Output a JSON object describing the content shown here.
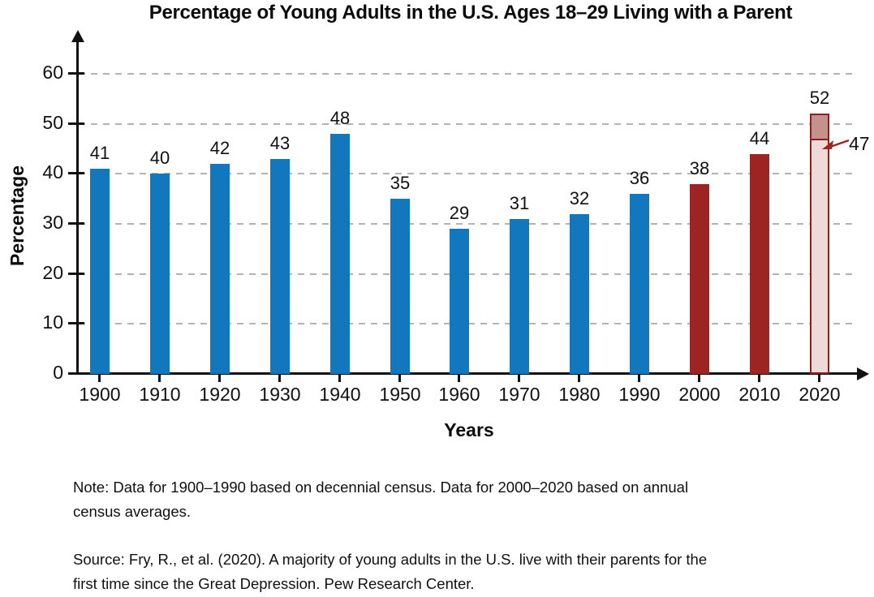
{
  "chart_data": {
    "type": "bar",
    "title": "Percentage of Young Adults in the U.S. Ages 18–29 Living with a Parent",
    "xlabel": "Years",
    "ylabel": "Percentage",
    "ylim": [
      0,
      60
    ],
    "yticks": [
      0,
      10,
      20,
      30,
      40,
      50,
      60
    ],
    "grid": "dashed horizontal gridlines at each y tick",
    "axis_style": "arrow-tipped x and y axes",
    "legend": null,
    "categories": [
      "1900",
      "1910",
      "1920",
      "1930",
      "1940",
      "1950",
      "1960",
      "1970",
      "1980",
      "1990",
      "2000",
      "2010",
      "2020"
    ],
    "values": [
      41,
      40,
      42,
      43,
      48,
      35,
      29,
      31,
      32,
      36,
      38,
      44,
      52
    ],
    "bar_groups": [
      "decennial",
      "decennial",
      "decennial",
      "decennial",
      "decennial",
      "decennial",
      "decennial",
      "decennial",
      "decennial",
      "decennial",
      "annual",
      "annual",
      "annual_highlight"
    ],
    "annotation": {
      "category": "2020",
      "bar_total": 52,
      "marker_value": 47
    },
    "colors": {
      "decennial": "#1377BD",
      "annual": "#9E2423",
      "highlight_fill": "#F0DAD7",
      "highlight_top_fill": "#C4928D",
      "highlight_border": "#8E1F1E",
      "annotation_arrow": "#A32322",
      "grid": "#B3B3B3",
      "axis": "#111111"
    }
  },
  "notes": {
    "note": "Note: Data for 1900–1990 based on decennial census. Data for 2000–2020 based on annual\ncensus averages.",
    "source": "Source: Fry, R., et al. (2020). A majority of young adults in the U.S. live with their parents for the\nfirst time since the Great Depression. Pew Research Center."
  }
}
